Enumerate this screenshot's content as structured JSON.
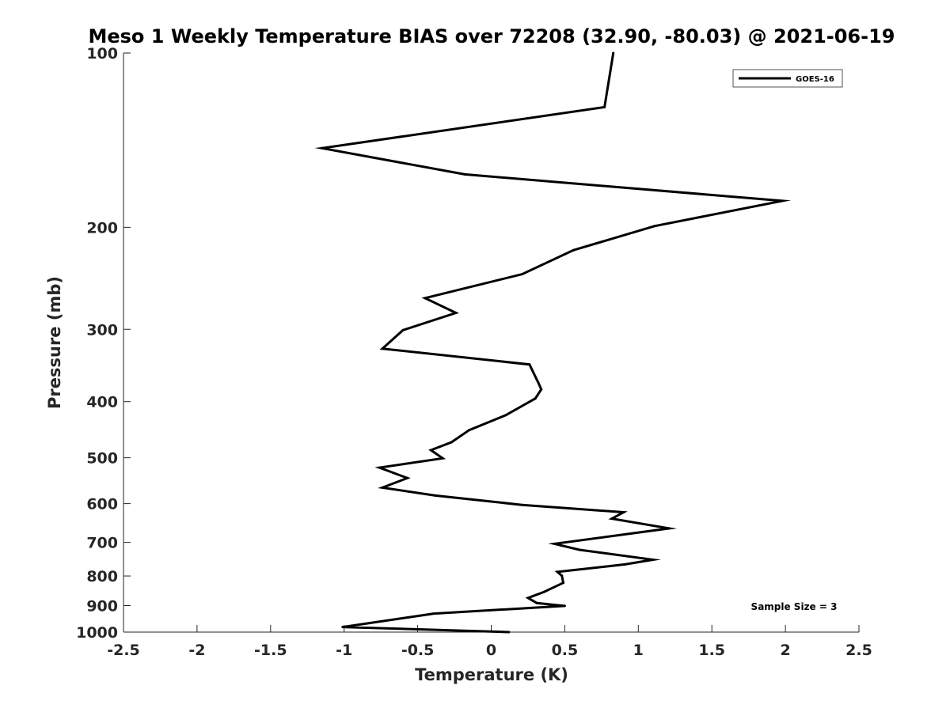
{
  "chart_data": {
    "type": "line",
    "title": "Meso 1 Weekly Temperature BIAS over 72208 (32.90, -80.03) @ 2021-06-19",
    "xlabel": "Temperature (K)",
    "ylabel": "Pressure (mb)",
    "xlim": [
      -2.5,
      2.5
    ],
    "ylim": [
      100,
      1000
    ],
    "y_scale": "log",
    "y_reversed": true,
    "x_ticks": [
      "-2.5",
      "-2",
      "-1.5",
      "-1",
      "-0.5",
      "0",
      "0.5",
      "1",
      "1.5",
      "2",
      "2.5"
    ],
    "y_ticks": [
      "100",
      "200",
      "300",
      "400",
      "500",
      "600",
      "700",
      "800",
      "900",
      "1000"
    ],
    "legend_position": "top-right",
    "grid": false,
    "series": [
      {
        "name": "GOES-16",
        "color": "#000000",
        "points": [
          {
            "x": 0.83,
            "y": 100
          },
          {
            "x": 0.77,
            "y": 124
          },
          {
            "x": -1.15,
            "y": 146
          },
          {
            "x": -0.18,
            "y": 162
          },
          {
            "x": 1.98,
            "y": 180
          },
          {
            "x": 1.11,
            "y": 199
          },
          {
            "x": 0.56,
            "y": 219
          },
          {
            "x": 0.21,
            "y": 241
          },
          {
            "x": -0.45,
            "y": 265
          },
          {
            "x": -0.24,
            "y": 281
          },
          {
            "x": -0.6,
            "y": 301
          },
          {
            "x": -0.74,
            "y": 324
          },
          {
            "x": 0.26,
            "y": 345
          },
          {
            "x": 0.32,
            "y": 371
          },
          {
            "x": 0.34,
            "y": 381
          },
          {
            "x": 0.3,
            "y": 395
          },
          {
            "x": 0.1,
            "y": 422
          },
          {
            "x": -0.15,
            "y": 448
          },
          {
            "x": -0.27,
            "y": 470
          },
          {
            "x": -0.41,
            "y": 485
          },
          {
            "x": -0.33,
            "y": 501
          },
          {
            "x": -0.76,
            "y": 520
          },
          {
            "x": -0.57,
            "y": 542
          },
          {
            "x": -0.74,
            "y": 563
          },
          {
            "x": -0.38,
            "y": 581
          },
          {
            "x": 0.21,
            "y": 603
          },
          {
            "x": 0.9,
            "y": 621
          },
          {
            "x": 0.82,
            "y": 637
          },
          {
            "x": 1.21,
            "y": 662
          },
          {
            "x": 0.43,
            "y": 704
          },
          {
            "x": 0.6,
            "y": 721
          },
          {
            "x": 1.1,
            "y": 750
          },
          {
            "x": 0.91,
            "y": 764
          },
          {
            "x": 0.45,
            "y": 787
          },
          {
            "x": 0.48,
            "y": 799
          },
          {
            "x": 0.49,
            "y": 822
          },
          {
            "x": 0.36,
            "y": 852
          },
          {
            "x": 0.25,
            "y": 873
          },
          {
            "x": 0.31,
            "y": 891
          },
          {
            "x": 0.5,
            "y": 901
          },
          {
            "x": 0.15,
            "y": 912
          },
          {
            "x": -0.39,
            "y": 929
          },
          {
            "x": -0.6,
            "y": 946
          },
          {
            "x": -1.01,
            "y": 980
          },
          {
            "x": 0.12,
            "y": 1000
          }
        ]
      }
    ],
    "annotations": [
      "Sample Size = 3"
    ]
  }
}
